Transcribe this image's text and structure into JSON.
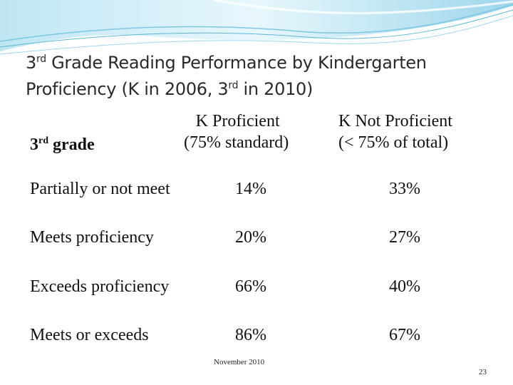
{
  "slide": {
    "title_line1_prefix": "3",
    "title_line1_sup": "rd",
    "title_line1_rest": " Grade Reading Performance by Kindergarten",
    "title_line2_prefix": "Proficiency (K in 2006, 3",
    "title_line2_sup": "rd",
    "title_line2_rest": " in 2010)"
  },
  "table": {
    "row_header_prefix": "3",
    "row_header_sup": "rd",
    "row_header_rest": " grade",
    "col1_line1": "K Proficient",
    "col1_line2": "(75% standard)",
    "col2_line1": "K Not Proficient",
    "col2_line2": "(< 75% of total)",
    "rows": [
      {
        "label": "Partially or not meet",
        "k_proficient": "14%",
        "k_not_proficient": "33%"
      },
      {
        "label": "Meets proficiency",
        "k_proficient": "20%",
        "k_not_proficient": "27%"
      },
      {
        "label": "Exceeds proficiency",
        "k_proficient": "66%",
        "k_not_proficient": "40%"
      },
      {
        "label": "Meets or exceeds",
        "k_proficient": "86%",
        "k_not_proficient": "67%"
      }
    ]
  },
  "footer": {
    "date": "November 2010",
    "page_number": "23"
  },
  "colors": {
    "banner_light": "#dff3fa",
    "banner_mid": "#a8dcef",
    "banner_line": "#5fb6d6"
  }
}
